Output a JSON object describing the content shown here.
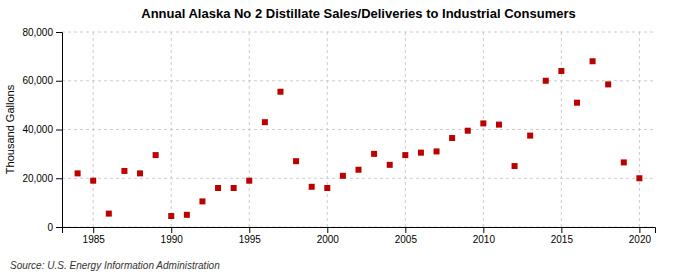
{
  "chart_data": {
    "type": "scatter",
    "title": "Annual Alaska No 2 Distillate Sales/Deliveries to Industrial Consumers",
    "ylabel": "Thousand Gallons",
    "annotations": [
      "Source: U.S. Energy Information Administration"
    ],
    "x": [
      1984,
      1985,
      1986,
      1987,
      1988,
      1989,
      1990,
      1991,
      1992,
      1993,
      1994,
      1995,
      1996,
      1997,
      1998,
      1999,
      2000,
      2001,
      2002,
      2003,
      2004,
      2005,
      2006,
      2007,
      2008,
      2009,
      2010,
      2011,
      2012,
      2013,
      2014,
      2015,
      2016,
      2017,
      2018,
      2019,
      2020
    ],
    "values": [
      22000,
      19000,
      5500,
      23000,
      22000,
      29500,
      4500,
      5000,
      10500,
      16000,
      16000,
      19000,
      43000,
      55500,
      27000,
      16500,
      16000,
      21000,
      23500,
      30000,
      25500,
      29500,
      30500,
      31000,
      36500,
      39500,
      42500,
      42000,
      25000,
      37500,
      60000,
      64000,
      51000,
      68000,
      58500,
      26500,
      20000
    ],
    "color": "#bb0000",
    "marker": "square",
    "xlim": [
      1983,
      2021
    ],
    "ylim": [
      0,
      80000
    ],
    "xticks": [
      1985,
      1990,
      1995,
      2000,
      2005,
      2010,
      2015,
      2020
    ],
    "yticks": [
      0,
      {
        "value": 20000,
        "label": "20,000"
      },
      {
        "value": 40000,
        "label": "40,000"
      },
      {
        "value": 60000,
        "label": "60,000"
      },
      {
        "value": 80000,
        "label": "80,000"
      }
    ],
    "grid": true
  }
}
